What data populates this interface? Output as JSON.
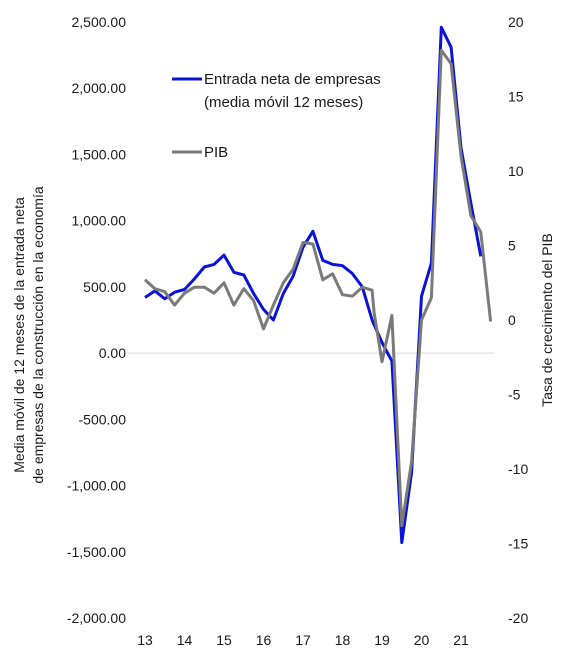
{
  "chart_data": {
    "type": "line",
    "x_ticks": [
      "13",
      "14",
      "15",
      "16",
      "17",
      "18",
      "19",
      "20",
      "21"
    ],
    "y_left": {
      "label_line1": "Media móvil de 12 meses de la entrada neta",
      "label_line2": "de empresas de la construcción en la economía",
      "ticks": [
        "2,500.00",
        "2,000.00",
        "1,500.00",
        "1,000.00",
        "500.00",
        "0.00",
        "-500.00",
        "-1,000.00",
        "-1,500.00",
        "-2,000.00"
      ],
      "range": [
        -2000,
        2500
      ]
    },
    "y_right": {
      "label": "Tasa de crecimiento del PIB",
      "ticks": [
        "20",
        "15",
        "10",
        "5",
        "0",
        "-5",
        "-10",
        "-15",
        "-20"
      ],
      "range": [
        -20,
        20
      ]
    },
    "zero_line": true,
    "legend": {
      "placement": "upper-center"
    },
    "series": [
      {
        "name": "Entrada neta de empresas",
        "name_line2": "(media móvil 12 meses)",
        "axis": "left",
        "color": "#0a14d8",
        "x": [
          13.0,
          13.25,
          13.5,
          13.75,
          14.0,
          14.25,
          14.5,
          14.75,
          15.0,
          15.25,
          15.5,
          15.75,
          16.0,
          16.25,
          16.5,
          16.75,
          17.0,
          17.25,
          17.5,
          17.75,
          18.0,
          18.25,
          18.5,
          18.75,
          19.0,
          19.25,
          19.5,
          19.75,
          20.0,
          20.25,
          20.5,
          20.75,
          21.0,
          21.25,
          21.5
        ],
        "values": [
          420,
          470,
          410,
          460,
          480,
          560,
          650,
          670,
          740,
          610,
          590,
          450,
          330,
          250,
          450,
          580,
          800,
          920,
          700,
          670,
          660,
          600,
          500,
          250,
          80,
          -60,
          -1430,
          -900,
          430,
          680,
          2460,
          2310,
          1550,
          1130,
          730
        ]
      },
      {
        "name": "PIB",
        "axis": "right",
        "color": "#7a7a7a",
        "x": [
          13.0,
          13.25,
          13.5,
          13.75,
          14.0,
          14.25,
          14.5,
          14.75,
          15.0,
          15.25,
          15.5,
          15.75,
          16.0,
          16.25,
          16.5,
          16.75,
          17.0,
          17.25,
          17.5,
          17.75,
          18.0,
          18.25,
          18.5,
          18.75,
          18.8,
          19.0,
          19.25,
          19.5,
          19.75,
          20.0,
          20.25,
          20.5,
          20.75,
          21.0,
          21.25,
          21.5,
          21.75
        ],
        "values": [
          2.7,
          2.1,
          1.9,
          1.0,
          1.8,
          2.2,
          2.2,
          1.8,
          2.5,
          1.0,
          2.1,
          1.3,
          -0.6,
          1.0,
          2.5,
          3.4,
          5.2,
          5.1,
          2.7,
          3.1,
          1.7,
          1.6,
          2.2,
          2.0,
          0.5,
          -2.8,
          0.3,
          -13.8,
          -9.5,
          0.0,
          1.5,
          18.1,
          17.2,
          11.0,
          7.0,
          5.9,
          -0.1
        ]
      }
    ]
  }
}
